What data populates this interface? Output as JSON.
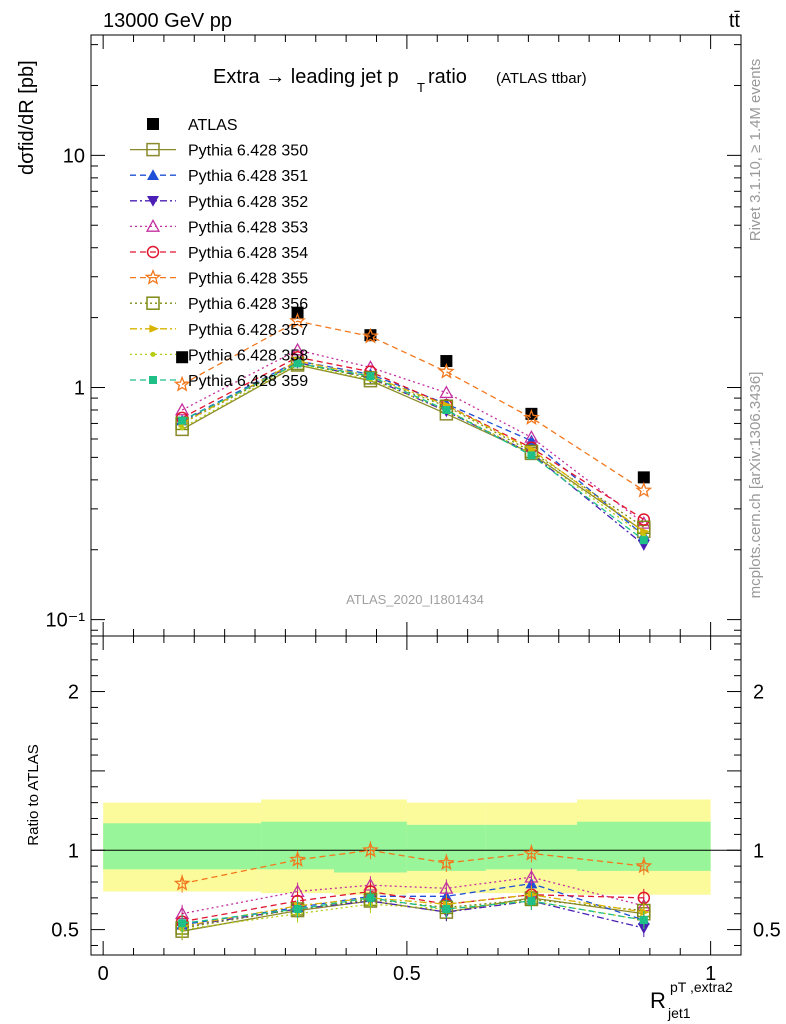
{
  "header": {
    "energy_label": "13000 GeV pp",
    "process_label": "tt̄"
  },
  "side_labels": {
    "rivet": "Rivet 3.1.10, ≥ 1.4M events",
    "mcplots": "mcplots.cern.ch [arXiv:1306.3436]"
  },
  "chart_data": [
    {
      "type": "scatter",
      "title_main": "Extra → leading jet p",
      "title_sub": "T",
      "title_main2": " ratio",
      "title_note": "(ATLAS ttbar)",
      "analysis_label": "ATLAS_2020_I1801434",
      "ylabel": "dσfid/dR [pb]",
      "yscale": "log",
      "ylim": [
        0.085,
        33
      ],
      "y_ticks": [
        {
          "value": 0.1,
          "label": "10⁻¹"
        },
        {
          "value": 1,
          "label": "1"
        },
        {
          "value": 10,
          "label": "10"
        }
      ],
      "x": [
        0.13,
        0.32,
        0.44,
        0.565,
        0.705,
        0.89
      ],
      "x_edges": [
        0,
        0.26,
        0.38,
        0.5,
        0.63,
        0.78,
        1.0
      ],
      "series": [
        {
          "name": "ATLAS",
          "color": "#000000",
          "marker": "filled-square",
          "line": "none",
          "values": [
            1.35,
            2.1,
            1.68,
            1.3,
            0.77,
            0.41
          ]
        },
        {
          "name": "Pythia 6.428 350",
          "color": "#8a8a2a",
          "marker": "open-square",
          "line": "solid",
          "values": [
            0.66,
            1.25,
            1.07,
            0.77,
            0.52,
            0.24
          ]
        },
        {
          "name": "Pythia 6.428 351",
          "color": "#1f4fd6",
          "marker": "filled-triangle-up",
          "line": "dashed",
          "values": [
            0.72,
            1.3,
            1.14,
            0.85,
            0.59,
            0.23
          ]
        },
        {
          "name": "Pythia 6.428 352",
          "color": "#4b1fb5",
          "marker": "filled-triangle-down",
          "line": "dashdot",
          "values": [
            0.71,
            1.28,
            1.1,
            0.79,
            0.52,
            0.21
          ]
        },
        {
          "name": "Pythia 6.428 353",
          "color": "#c4309f",
          "marker": "open-triangle-up",
          "line": "dotted",
          "values": [
            0.8,
            1.45,
            1.22,
            0.95,
            0.61,
            0.26
          ]
        },
        {
          "name": "Pythia 6.428 354",
          "color": "#e0142e",
          "marker": "open-circle",
          "line": "dashed",
          "values": [
            0.74,
            1.35,
            1.17,
            0.84,
            0.55,
            0.27
          ]
        },
        {
          "name": "Pythia 6.428 355",
          "color": "#f2781e",
          "marker": "open-star",
          "line": "dashed",
          "values": [
            1.03,
            1.93,
            1.66,
            1.17,
            0.74,
            0.36
          ]
        },
        {
          "name": "Pythia 6.428 356",
          "color": "#7d8a14",
          "marker": "open-square",
          "line": "dotted",
          "values": [
            0.7,
            1.27,
            1.1,
            0.83,
            0.53,
            0.25
          ]
        },
        {
          "name": "Pythia 6.428 357",
          "color": "#d8b400",
          "marker": "filled-triangle-right",
          "line": "dashdot",
          "values": [
            0.7,
            1.3,
            1.12,
            0.84,
            0.54,
            0.24
          ]
        },
        {
          "name": "Pythia 6.428 358",
          "color": "#b8cc14",
          "marker": "small-dot",
          "line": "dotted",
          "values": [
            0.67,
            1.26,
            1.08,
            0.8,
            0.52,
            0.23
          ]
        },
        {
          "name": "Pythia 6.428 359",
          "color": "#1fbf88",
          "marker": "filled-square-small",
          "line": "dashed",
          "values": [
            0.72,
            1.27,
            1.12,
            0.8,
            0.51,
            0.22
          ]
        }
      ]
    },
    {
      "type": "scatter",
      "ylabel": "Ratio to ATLAS",
      "yscale": "linear",
      "ylim": [
        0.34,
        2.35
      ],
      "y_ticks": [
        {
          "value": 0.5,
          "label": "0.5"
        },
        {
          "value": 1,
          "label": "1"
        },
        {
          "value": 2,
          "label": "2"
        }
      ],
      "x_ticks": [
        {
          "value": 0,
          "label": "0"
        },
        {
          "value": 0.5,
          "label": "0.5"
        },
        {
          "value": 1,
          "label": "1"
        }
      ],
      "xlabel": "R",
      "xlabel_sup": "pT ,extra2",
      "xlabel_sub": "jet1",
      "xlim": [
        -0.02,
        1.05
      ],
      "uncertainty_bands": {
        "inner_color": "#99f599",
        "outer_color": "#fbfb9b",
        "x_edges": [
          0,
          0.26,
          0.38,
          0.5,
          0.63,
          0.78,
          1.0
        ],
        "inner": [
          [
            0.88,
            1.17
          ],
          [
            0.88,
            1.18
          ],
          [
            0.86,
            1.18
          ],
          [
            0.87,
            1.16
          ],
          [
            0.88,
            1.16
          ],
          [
            0.87,
            1.18
          ]
        ],
        "outer": [
          [
            0.74,
            1.3
          ],
          [
            0.73,
            1.32
          ],
          [
            0.72,
            1.32
          ],
          [
            0.73,
            1.3
          ],
          [
            0.73,
            1.3
          ],
          [
            0.72,
            1.32
          ]
        ]
      },
      "x": [
        0.13,
        0.32,
        0.44,
        0.565,
        0.705,
        0.89
      ],
      "series": [
        {
          "name": "Pythia 6.428 350",
          "values": [
            0.49,
            0.62,
            0.68,
            0.61,
            0.7,
            0.6
          ]
        },
        {
          "name": "Pythia 6.428 351",
          "values": [
            0.53,
            0.64,
            0.71,
            0.71,
            0.79,
            0.56
          ]
        },
        {
          "name": "Pythia 6.428 352",
          "values": [
            0.52,
            0.63,
            0.68,
            0.61,
            0.68,
            0.51
          ]
        },
        {
          "name": "Pythia 6.428 353",
          "values": [
            0.6,
            0.74,
            0.78,
            0.76,
            0.83,
            0.65
          ]
        },
        {
          "name": "Pythia 6.428 354",
          "values": [
            0.55,
            0.68,
            0.74,
            0.66,
            0.72,
            0.7
          ]
        },
        {
          "name": "Pythia 6.428 355",
          "values": [
            0.79,
            0.94,
            1.0,
            0.92,
            0.98,
            0.9
          ]
        },
        {
          "name": "Pythia 6.428 356",
          "values": [
            0.51,
            0.63,
            0.69,
            0.64,
            0.69,
            0.62
          ]
        },
        {
          "name": "Pythia 6.428 357",
          "values": [
            0.52,
            0.65,
            0.7,
            0.66,
            0.72,
            0.61
          ]
        },
        {
          "name": "Pythia 6.428 358",
          "values": [
            0.5,
            0.6,
            0.66,
            0.63,
            0.68,
            0.56
          ]
        },
        {
          "name": "Pythia 6.428 359",
          "values": [
            0.54,
            0.63,
            0.7,
            0.63,
            0.68,
            0.56
          ]
        }
      ]
    }
  ]
}
